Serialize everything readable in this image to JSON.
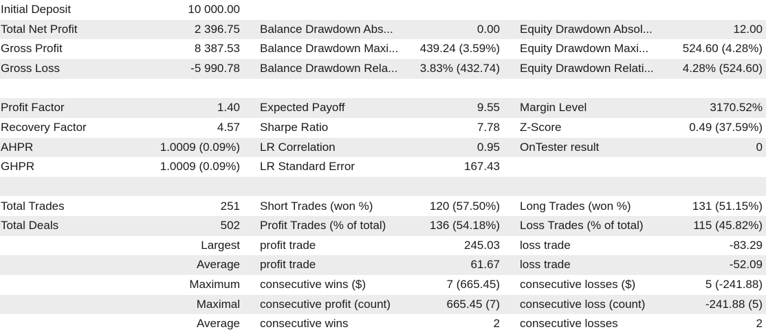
{
  "rows": [
    [
      "Initial Deposit",
      "10 000.00",
      null,
      null,
      null,
      null
    ],
    [
      "Total Net Profit",
      "2 396.75",
      "Balance Drawdown Abs...",
      "0.00",
      "Equity Drawdown Absol...",
      "12.00"
    ],
    [
      "Gross Profit",
      "8 387.53",
      "Balance Drawdown Maxi...",
      "439.24 (3.59%)",
      "Equity Drawdown Maxi...",
      "524.60 (4.28%)"
    ],
    [
      "Gross Loss",
      "-5 990.78",
      "Balance Drawdown Rela...",
      "3.83% (432.74)",
      "Equity Drawdown Relati...",
      "4.28% (524.60)"
    ],
    [
      null,
      null,
      null,
      null,
      null,
      null
    ],
    [
      "Profit Factor",
      "1.40",
      "Expected Payoff",
      "9.55",
      "Margin Level",
      "3170.52%"
    ],
    [
      "Recovery Factor",
      "4.57",
      "Sharpe Ratio",
      "7.78",
      "Z-Score",
      "0.49 (37.59%)"
    ],
    [
      "AHPR",
      "1.0009 (0.09%)",
      "LR Correlation",
      "0.95",
      "OnTester result",
      "0"
    ],
    [
      "GHPR",
      "1.0009 (0.09%)",
      "LR Standard Error",
      "167.43",
      null,
      null
    ],
    [
      null,
      null,
      null,
      null,
      null,
      null
    ],
    [
      "Total Trades",
      "251",
      "Short Trades (won %)",
      "120 (57.50%)",
      "Long Trades (won %)",
      "131 (51.15%)"
    ],
    [
      "Total Deals",
      "502",
      "Profit Trades (% of total)",
      "136 (54.18%)",
      "Loss Trades (% of total)",
      "115 (45.82%)"
    ],
    [
      null,
      "Largest",
      "profit trade",
      "245.03",
      "loss trade",
      "-83.29"
    ],
    [
      null,
      "Average",
      "profit trade",
      "61.67",
      "loss trade",
      "-52.09"
    ],
    [
      null,
      "Maximum",
      "consecutive wins ($)",
      "7 (665.45)",
      "consecutive losses ($)",
      "5 (-241.88)"
    ],
    [
      null,
      "Maximal",
      "consecutive profit (count)",
      "665.45 (7)",
      "consecutive loss (count)",
      "-241.88 (5)"
    ],
    [
      null,
      "Average",
      "consecutive wins",
      "2",
      "consecutive losses",
      "2"
    ]
  ]
}
